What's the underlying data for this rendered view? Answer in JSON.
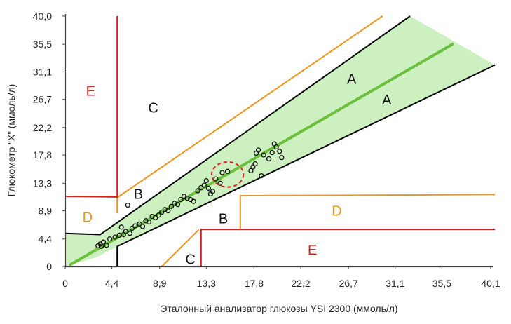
{
  "chart_data": {
    "type": "scatter",
    "title": "",
    "xlabel": "Эталонный анализатор глюкозы YSI 2300 (ммоль/л)",
    "ylabel": "Глюкометр “X” (ммоль/л)",
    "xlim": [
      0,
      40.1
    ],
    "ylim": [
      0,
      40.0
    ],
    "x_ticks": [
      "0",
      "4,4",
      "8,9",
      "13,3",
      "17,8",
      "22,2",
      "26,7",
      "31,1",
      "35,5",
      "40,1"
    ],
    "y_ticks": [
      "0",
      "4,4",
      "8,9",
      "13,3",
      "17,8",
      "22,2",
      "26,7",
      "31,1",
      "35,5",
      "40,0"
    ],
    "grid": false,
    "colors": {
      "a_zone_fill": "#cdf0c0",
      "identity_line": "#6abf3c",
      "zone_boundary": "#000000",
      "c_boundary": "#f0961e",
      "e_boundary": "#d42020",
      "d_label": "#f0961e",
      "e_label": "#d42020",
      "highlight": "#e02020"
    },
    "zone_labels": [
      {
        "text": "A",
        "x": 27,
        "y": 29.8,
        "color": "#111111"
      },
      {
        "text": "A",
        "x": 30.3,
        "y": 26.5,
        "color": "#111111"
      },
      {
        "text": "B",
        "x": 6.9,
        "y": 11.4,
        "color": "#111111"
      },
      {
        "text": "B",
        "x": 14.9,
        "y": 7.5,
        "color": "#111111"
      },
      {
        "text": "C",
        "x": 8.3,
        "y": 25.2,
        "color": "#111111"
      },
      {
        "text": "C",
        "x": 11.8,
        "y": 1.0,
        "color": "#111111"
      },
      {
        "text": "D",
        "x": 2.1,
        "y": 7.7,
        "color": "#f0961e"
      },
      {
        "text": "D",
        "x": 25.6,
        "y": 8.7,
        "color": "#f0961e"
      },
      {
        "text": "E",
        "x": 2.4,
        "y": 27.9,
        "color": "#d42020"
      },
      {
        "text": "E",
        "x": 23.3,
        "y": 2.5,
        "color": "#d42020"
      }
    ],
    "boundaries": [
      {
        "zone": "A upper",
        "color": "#000000",
        "points": [
          [
            0,
            5.3
          ],
          [
            3.3,
            5.1
          ],
          [
            32.5,
            40.0
          ]
        ]
      },
      {
        "zone": "A lower",
        "color": "#000000",
        "points": [
          [
            4.9,
            0
          ],
          [
            4.9,
            3.2
          ],
          [
            40.5,
            32.2
          ]
        ]
      },
      {
        "zone": "C upper",
        "color": "#f0961e",
        "points": [
          [
            4.9,
            8.5
          ],
          [
            4.9,
            11.0
          ],
          [
            29.9,
            40.0
          ]
        ]
      },
      {
        "zone": "C lower",
        "color": "#f0961e",
        "points": [
          [
            9.1,
            0
          ],
          [
            12.6,
            5.9
          ]
        ]
      },
      {
        "zone": "D lower",
        "color": "#f0961e",
        "points": [
          [
            16.5,
            5.9
          ],
          [
            16.5,
            11.3
          ],
          [
            40.5,
            11.5
          ]
        ]
      },
      {
        "zone": "E upper",
        "color": "#d42020",
        "points": [
          [
            0,
            11.2
          ],
          [
            4.9,
            11.1
          ],
          [
            4.9,
            40.0
          ]
        ]
      },
      {
        "zone": "E lower",
        "color": "#d42020",
        "points": [
          [
            12.8,
            0
          ],
          [
            12.8,
            5.9
          ],
          [
            40.5,
            5.9
          ]
        ]
      }
    ],
    "a_zone_region": [
      [
        0,
        0
      ],
      [
        0,
        5.3
      ],
      [
        3.3,
        5.1
      ],
      [
        32.5,
        40.0
      ],
      [
        40.5,
        32.2
      ],
      [
        4.9,
        3.2
      ],
      [
        3.0,
        1.5
      ]
    ],
    "identity_line": [
      [
        0.5,
        0.3
      ],
      [
        36.5,
        35.5
      ]
    ],
    "points": [
      [
        3.1,
        3.3
      ],
      [
        3.3,
        3.6
      ],
      [
        3.4,
        3.2
      ],
      [
        3.6,
        3.9
      ],
      [
        3.9,
        3.4
      ],
      [
        4.2,
        4.4
      ],
      [
        4.7,
        4.7
      ],
      [
        5.1,
        5.0
      ],
      [
        5.3,
        6.3
      ],
      [
        5.5,
        5.1
      ],
      [
        5.7,
        5.6
      ],
      [
        5.9,
        9.8
      ],
      [
        6.1,
        5.3
      ],
      [
        6.3,
        6.1
      ],
      [
        6.6,
        6.5
      ],
      [
        7.0,
        6.8
      ],
      [
        7.3,
        6.4
      ],
      [
        7.6,
        7.3
      ],
      [
        7.9,
        7.1
      ],
      [
        8.2,
        8.0
      ],
      [
        8.5,
        7.8
      ],
      [
        8.8,
        8.2
      ],
      [
        9.1,
        8.7
      ],
      [
        9.4,
        9.1
      ],
      [
        9.7,
        8.9
      ],
      [
        10.0,
        9.6
      ],
      [
        10.3,
        10.1
      ],
      [
        10.6,
        9.9
      ],
      [
        10.9,
        10.7
      ],
      [
        11.2,
        11.2
      ],
      [
        11.5,
        10.9
      ],
      [
        11.8,
        10.7
      ],
      [
        12.1,
        10.4
      ],
      [
        12.5,
        12.1
      ],
      [
        12.8,
        12.6
      ],
      [
        13.1,
        13.0
      ],
      [
        13.3,
        13.7
      ],
      [
        13.5,
        12.5
      ],
      [
        13.7,
        11.6
      ],
      [
        13.9,
        12.0
      ],
      [
        14.2,
        14.0
      ],
      [
        14.6,
        13.3
      ],
      [
        14.8,
        15.0
      ],
      [
        15.3,
        15.2
      ],
      [
        17.5,
        15.3
      ],
      [
        17.7,
        15.9
      ],
      [
        17.9,
        16.4
      ],
      [
        18.0,
        18.1
      ],
      [
        18.2,
        18.6
      ],
      [
        18.5,
        14.5
      ],
      [
        18.7,
        17.8
      ],
      [
        19.2,
        17.2
      ],
      [
        19.5,
        18.2
      ],
      [
        19.7,
        19.6
      ],
      [
        19.9,
        19.1
      ],
      [
        20.2,
        18.4
      ],
      [
        20.4,
        17.4
      ]
    ],
    "highlight": {
      "x": 15.3,
      "y": 14.7,
      "rx": 1.5,
      "ry": 2.0
    }
  }
}
